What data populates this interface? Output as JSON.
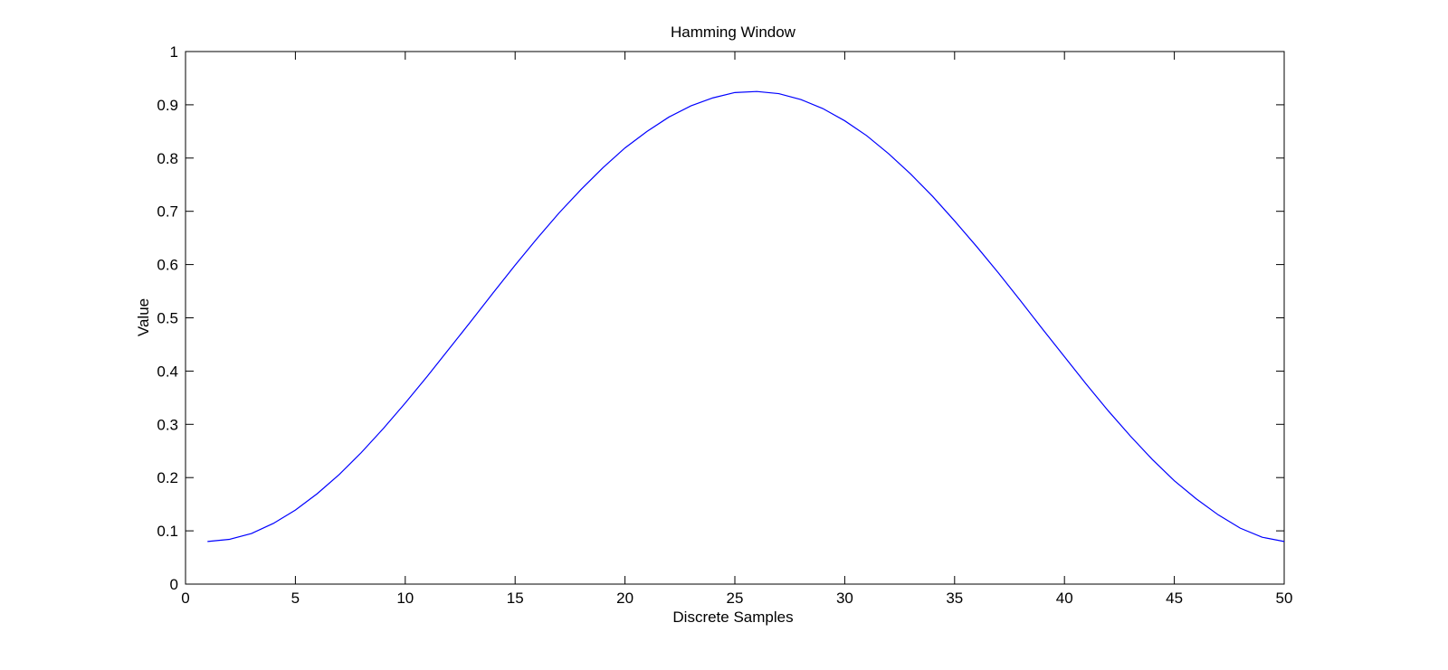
{
  "chart_data": {
    "type": "line",
    "title": "Hamming Window",
    "xlabel": "Discrete Samples",
    "ylabel": "Value",
    "xlim": [
      0,
      50
    ],
    "ylim": [
      0,
      1
    ],
    "x_ticks": [
      "0",
      "5",
      "10",
      "15",
      "20",
      "25",
      "30",
      "35",
      "40",
      "45",
      "50"
    ],
    "y_ticks": [
      "0",
      "0.1",
      "0.2",
      "0.3",
      "0.4",
      "0.5",
      "0.6",
      "0.7",
      "0.8",
      "0.9",
      "1"
    ],
    "grid": false,
    "line_color": "#0000ff",
    "series": [
      {
        "x": [
          1,
          2,
          3,
          4,
          5,
          6,
          7,
          8,
          9,
          10,
          11,
          12,
          13,
          14,
          15,
          16,
          17,
          18,
          19,
          20,
          21,
          22,
          23,
          24,
          25,
          26,
          27,
          28,
          29,
          30,
          31,
          32,
          33,
          34,
          35,
          36,
          37,
          38,
          39,
          40,
          41,
          42,
          43,
          44,
          45,
          46,
          47,
          48,
          49,
          50
        ],
        "values": [
          0.08,
          0.084,
          0.095,
          0.114,
          0.139,
          0.17,
          0.206,
          0.247,
          0.292,
          0.34,
          0.39,
          0.442,
          0.494,
          0.547,
          0.599,
          0.649,
          0.697,
          0.741,
          0.782,
          0.819,
          0.85,
          0.877,
          0.898,
          0.913,
          0.923,
          0.925,
          0.921,
          0.91,
          0.893,
          0.87,
          0.842,
          0.808,
          0.77,
          0.728,
          0.682,
          0.634,
          0.584,
          0.532,
          0.479,
          0.427,
          0.375,
          0.325,
          0.278,
          0.234,
          0.194,
          0.16,
          0.13,
          0.105,
          0.088,
          0.08
        ]
      }
    ]
  }
}
